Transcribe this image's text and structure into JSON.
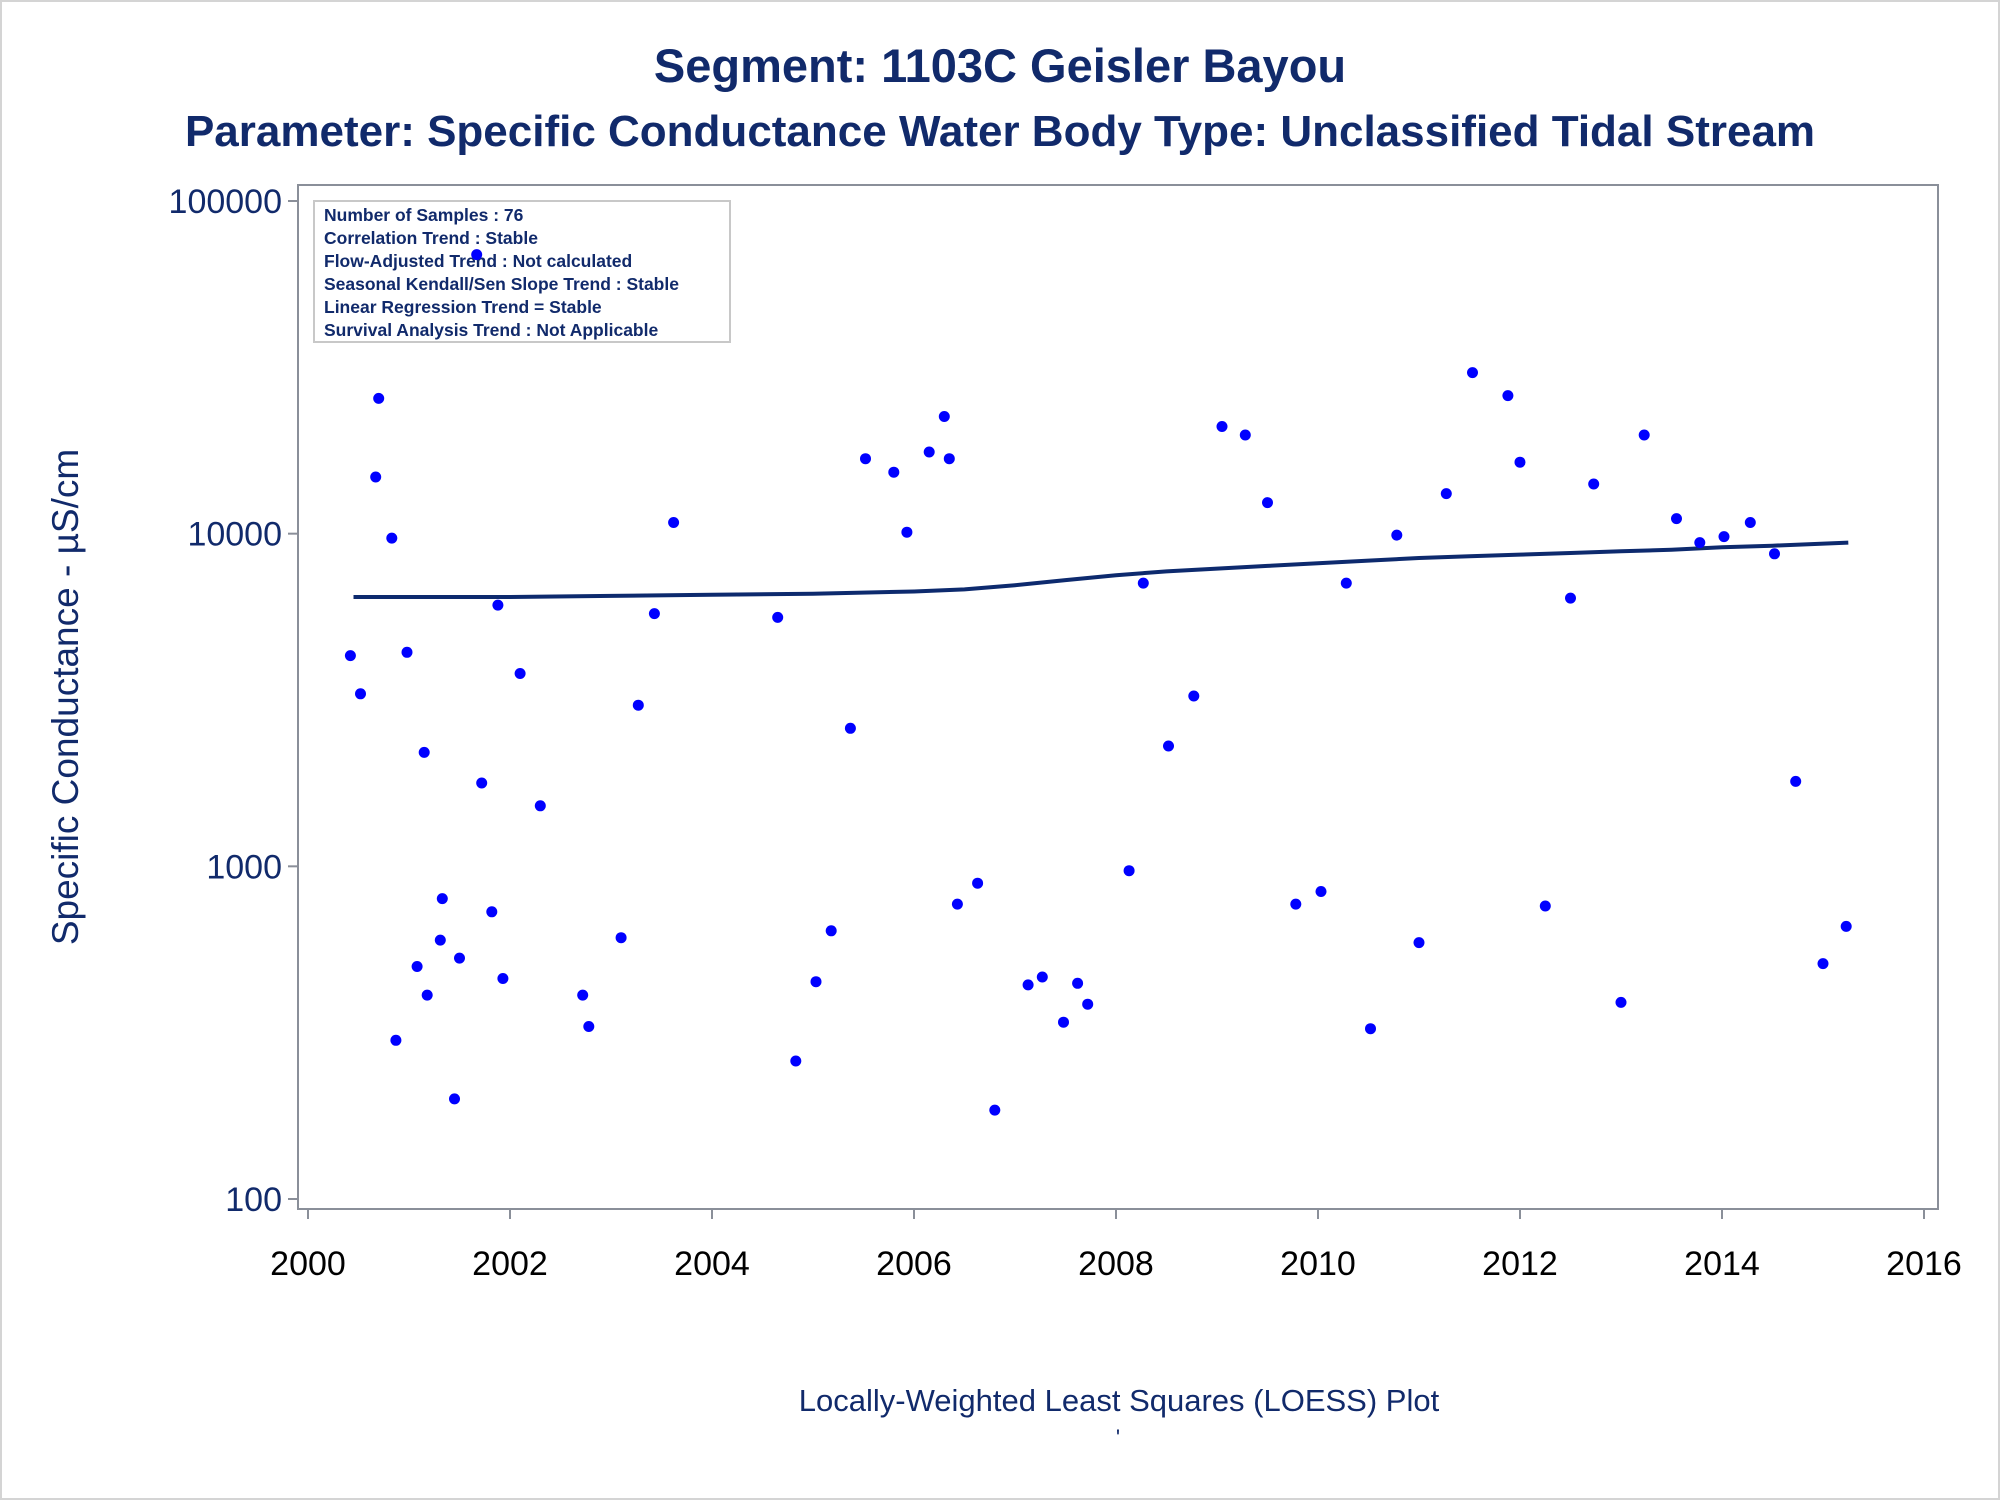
{
  "colors": {
    "text": "#112a6b",
    "marker": "#0000ff",
    "fit_line": "#0d2a6e",
    "axis": "#8a8f99",
    "frame": "#d4d4d4"
  },
  "chart_data": {
    "type": "scatter",
    "title": "Segment: 1103C  Geisler Bayou",
    "subtitle": "Parameter: Specific Conductance   Water Body Type: Unclassified Tidal Stream",
    "xlabel": "Locally-Weighted Least Squares (LOESS) Plot",
    "footnote": "'",
    "ylabel": "Specific Conductance -  µS/cm",
    "y_scale": "log",
    "xlim": [
      2000,
      2016
    ],
    "ylim": [
      100,
      100000
    ],
    "x_ticks": [
      "2000",
      "2002",
      "2004",
      "2006",
      "2008",
      "2010",
      "2012",
      "2014",
      "2016"
    ],
    "y_ticks": [
      "100",
      "1000",
      "10000",
      "100000"
    ],
    "legend_position": "top-left",
    "stats": [
      "Number of Samples : 76",
      "Correlation Trend : Stable",
      "Flow-Adjusted Trend : Not calculated",
      "Seasonal Kendall/Sen Slope Trend : Stable",
      "Linear Regression Trend = Stable",
      "Survival Analysis Trend : Not Applicable"
    ],
    "series": [
      {
        "kind": "scatter",
        "points": [
          [
            2000.42,
            4300
          ],
          [
            2000.52,
            3300
          ],
          [
            2000.67,
            14800
          ],
          [
            2000.7,
            25500
          ],
          [
            2000.83,
            9700
          ],
          [
            2000.87,
            300
          ],
          [
            2000.98,
            4400
          ],
          [
            2001.08,
            500
          ],
          [
            2001.15,
            2200
          ],
          [
            2001.18,
            410
          ],
          [
            2001.31,
            600
          ],
          [
            2001.33,
            800
          ],
          [
            2001.45,
            200
          ],
          [
            2001.5,
            530
          ],
          [
            2001.67,
            69000
          ],
          [
            2001.72,
            1780
          ],
          [
            2001.82,
            730
          ],
          [
            2001.88,
            6100
          ],
          [
            2001.93,
            460
          ],
          [
            2002.1,
            3800
          ],
          [
            2002.3,
            1520
          ],
          [
            2002.72,
            410
          ],
          [
            2002.78,
            330
          ],
          [
            2003.1,
            610
          ],
          [
            2003.27,
            3050
          ],
          [
            2003.43,
            5750
          ],
          [
            2003.62,
            10800
          ],
          [
            2004.65,
            5600
          ],
          [
            2004.83,
            260
          ],
          [
            2005.03,
            450
          ],
          [
            2005.18,
            640
          ],
          [
            2005.37,
            2600
          ],
          [
            2005.52,
            16800
          ],
          [
            2005.8,
            15300
          ],
          [
            2005.93,
            10100
          ],
          [
            2006.15,
            17600
          ],
          [
            2006.3,
            22500
          ],
          [
            2006.35,
            16800
          ],
          [
            2006.43,
            770
          ],
          [
            2006.63,
            890
          ],
          [
            2006.8,
            185
          ],
          [
            2007.13,
            440
          ],
          [
            2007.27,
            465
          ],
          [
            2007.48,
            340
          ],
          [
            2007.62,
            445
          ],
          [
            2007.72,
            385
          ],
          [
            2008.13,
            970
          ],
          [
            2008.27,
            7100
          ],
          [
            2008.52,
            2300
          ],
          [
            2008.77,
            3250
          ],
          [
            2009.05,
            21000
          ],
          [
            2009.28,
            19800
          ],
          [
            2009.5,
            12400
          ],
          [
            2009.78,
            770
          ],
          [
            2010.03,
            840
          ],
          [
            2010.28,
            7100
          ],
          [
            2010.52,
            325
          ],
          [
            2010.78,
            9900
          ],
          [
            2011.0,
            590
          ],
          [
            2011.27,
            13200
          ],
          [
            2011.53,
            30500
          ],
          [
            2011.88,
            26000
          ],
          [
            2012.0,
            16400
          ],
          [
            2012.25,
            760
          ],
          [
            2012.5,
            6400
          ],
          [
            2012.73,
            14100
          ],
          [
            2013.0,
            390
          ],
          [
            2013.23,
            19800
          ],
          [
            2013.55,
            11100
          ],
          [
            2013.78,
            9400
          ],
          [
            2014.02,
            9800
          ],
          [
            2014.28,
            10800
          ],
          [
            2014.52,
            8700
          ],
          [
            2014.73,
            1800
          ],
          [
            2015.0,
            510
          ],
          [
            2015.23,
            660
          ]
        ]
      },
      {
        "kind": "line",
        "x": [
          2000.45,
          2001.0,
          2002.0,
          2003.0,
          2004.0,
          2005.0,
          2006.0,
          2006.5,
          2007.0,
          2007.5,
          2008.0,
          2008.5,
          2009.0,
          2009.5,
          2010.0,
          2010.5,
          2011.0,
          2011.5,
          2012.0,
          2012.5,
          2013.0,
          2013.5,
          2014.0,
          2014.5,
          2015.25
        ],
        "y": [
          6450,
          6450,
          6450,
          6500,
          6550,
          6600,
          6700,
          6800,
          7000,
          7250,
          7500,
          7700,
          7850,
          8000,
          8150,
          8300,
          8450,
          8550,
          8650,
          8750,
          8850,
          8950,
          9100,
          9200,
          9400
        ]
      }
    ]
  }
}
